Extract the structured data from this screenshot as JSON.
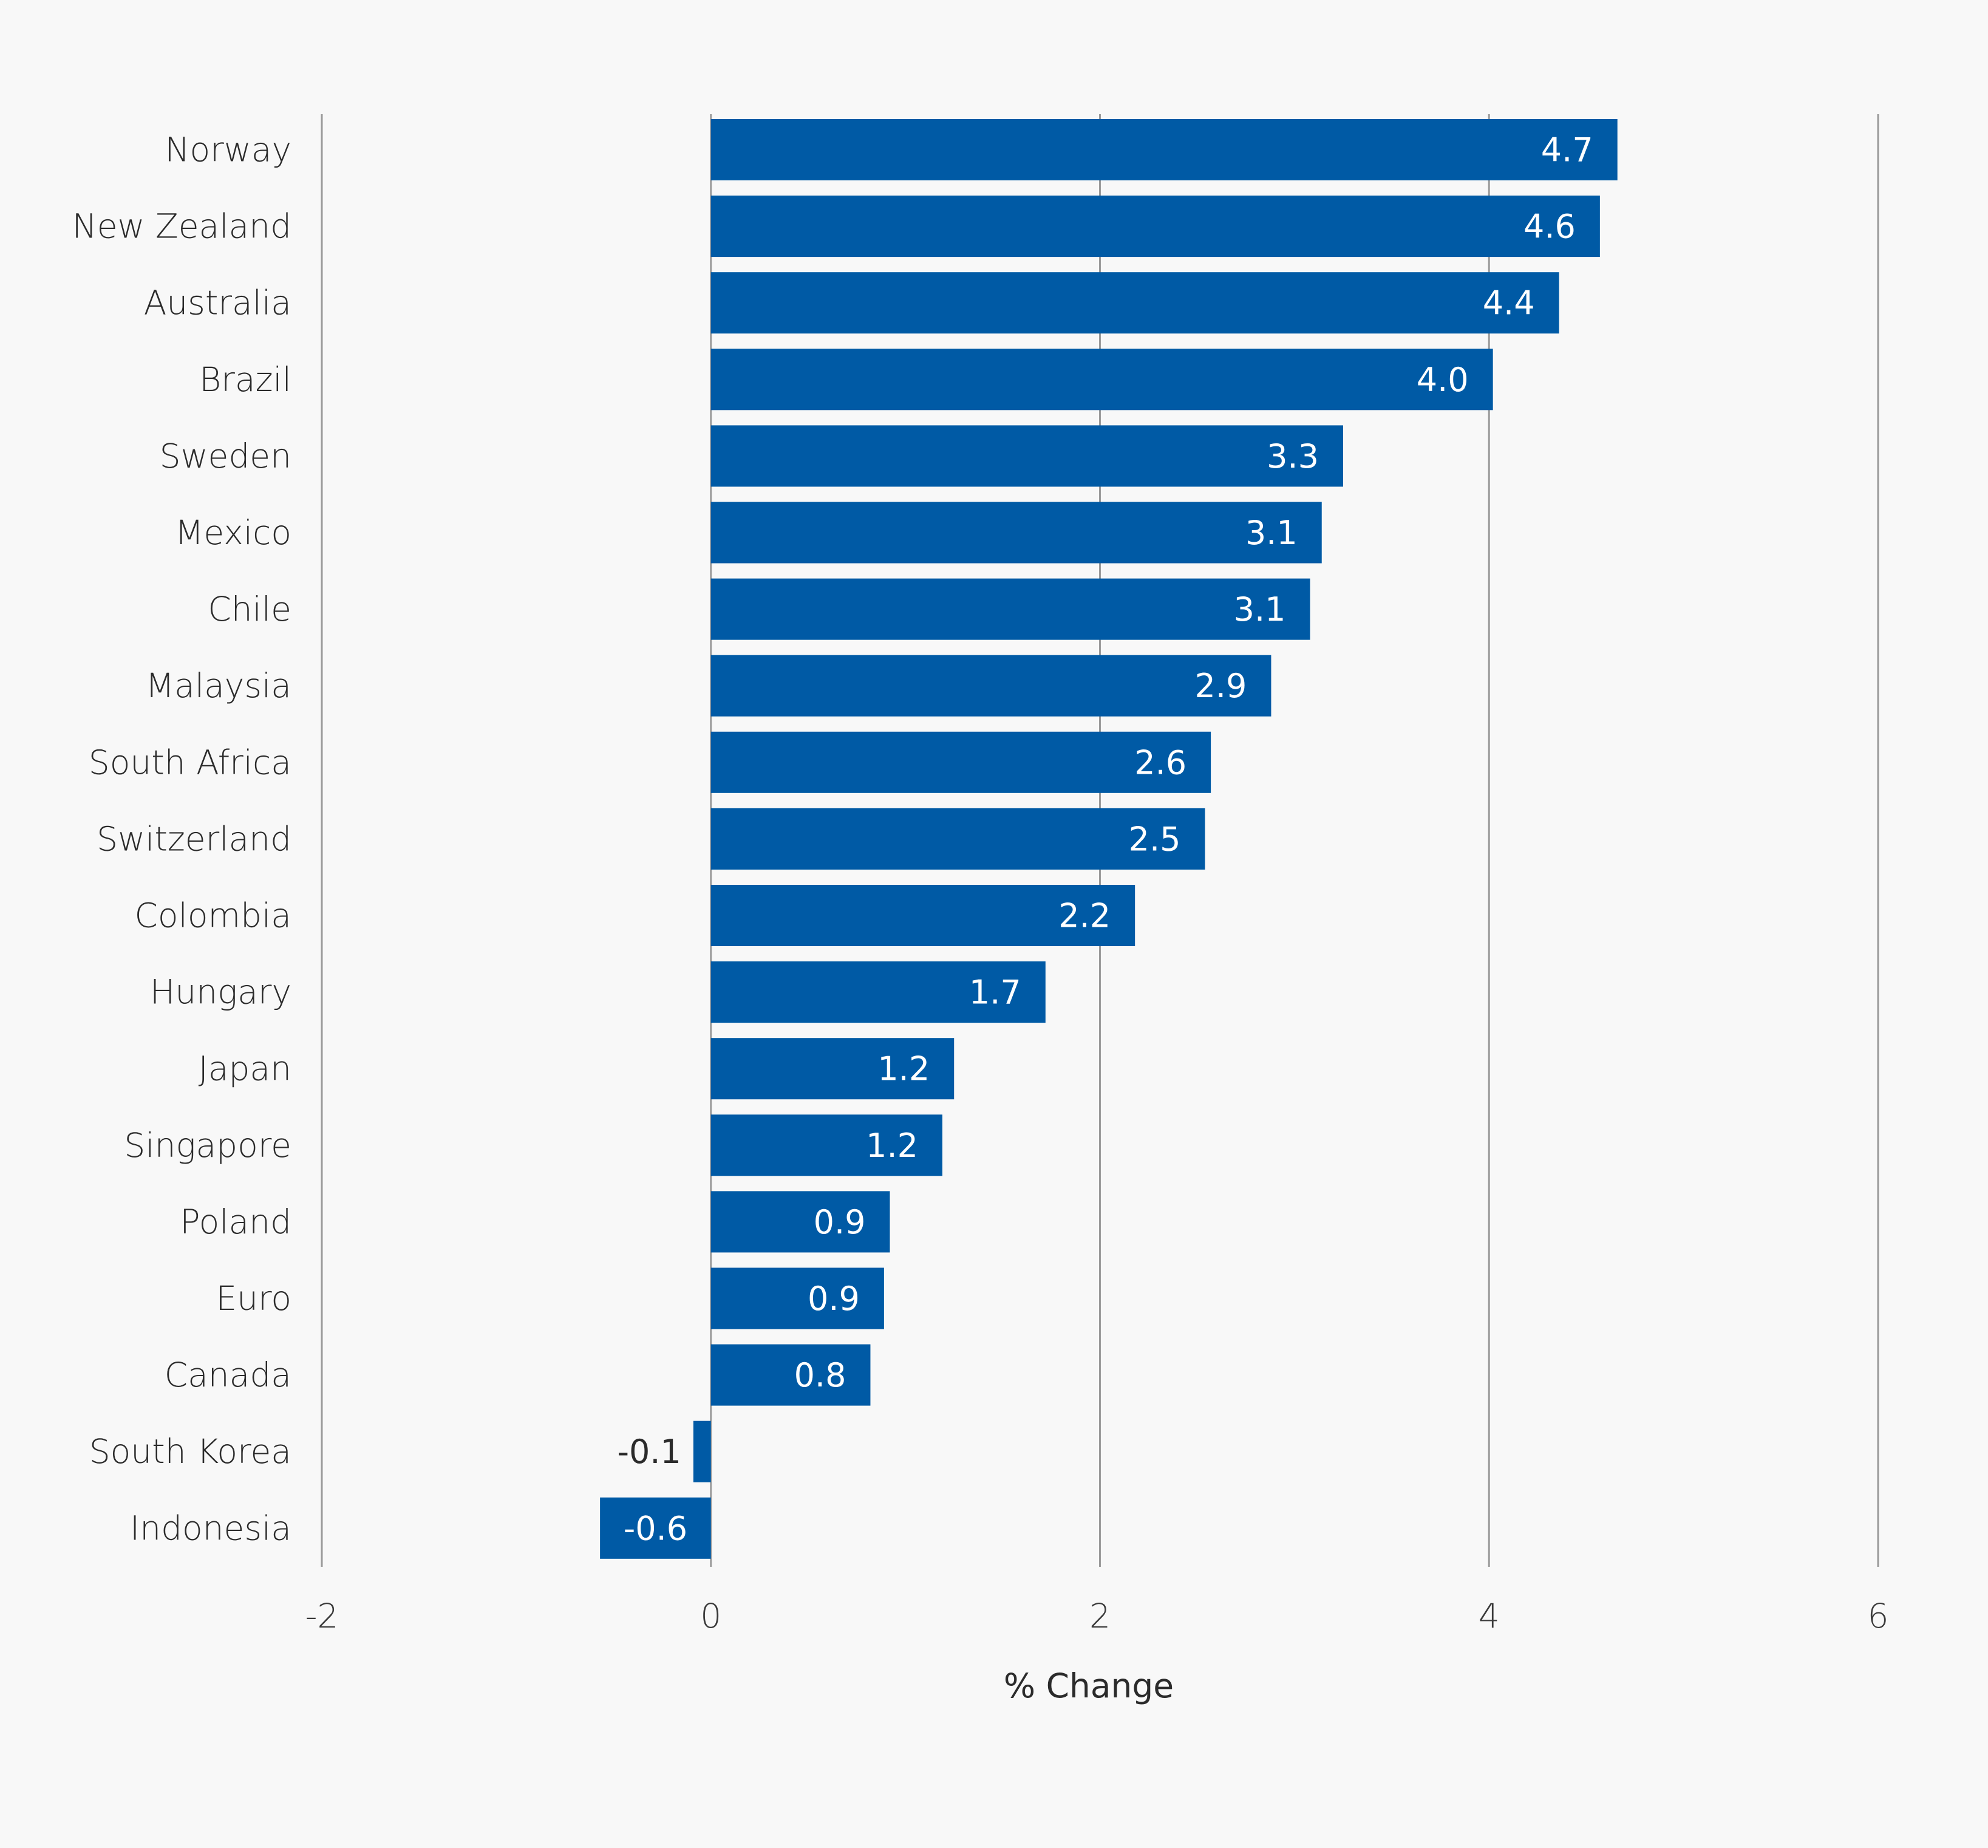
{
  "chart_data": {
    "type": "bar",
    "orientation": "horizontal",
    "categories": [
      "Norway",
      "New Zealand",
      "Australia",
      "Brazil",
      "Sweden",
      "Mexico",
      "Chile",
      "Malaysia",
      "South Africa",
      "Switzerland",
      "Colombia",
      "Hungary",
      "Japan",
      "Singapore",
      "Poland",
      "Euro",
      "Canada",
      "South Korea",
      "Indonesia"
    ],
    "values": [
      4.66,
      4.57,
      4.36,
      4.02,
      3.25,
      3.14,
      3.08,
      2.88,
      2.57,
      2.54,
      2.18,
      1.72,
      1.25,
      1.19,
      0.92,
      0.89,
      0.82,
      -0.09,
      -0.57
    ],
    "value_labels": [
      "4.7",
      "4.6",
      "4.4",
      "4.0",
      "3.3",
      "3.1",
      "3.1",
      "2.9",
      "2.6",
      "2.5",
      "2.2",
      "1.7",
      "1.2",
      "1.2",
      "0.9",
      "0.9",
      "0.8",
      "-0.1",
      "-0.6"
    ],
    "xlabel": "% Change",
    "ylabel": "",
    "xlim": [
      -2,
      6
    ],
    "xticks": [
      -2,
      0,
      2,
      4,
      6
    ],
    "xtick_labels": [
      "-2",
      "0",
      "2",
      "4",
      "6"
    ],
    "grid": "vertical",
    "legend": "none",
    "colors": {
      "bar": "#005aa5",
      "background": "#f8f8f8",
      "grid": "#9a9a9a"
    }
  }
}
